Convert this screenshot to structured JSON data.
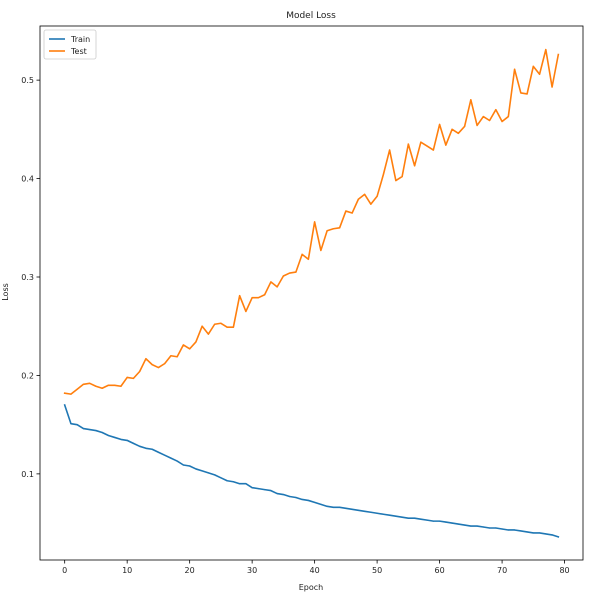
{
  "chart_data": {
    "type": "line",
    "title": "Model Loss",
    "xlabel": "Epoch",
    "ylabel": "Loss",
    "xlim": [
      -3.95,
      82.95
    ],
    "ylim": [
      0.0125,
      0.555
    ],
    "xticks": [
      0,
      10,
      20,
      30,
      40,
      50,
      60,
      70,
      80
    ],
    "yticks": [
      0.1,
      0.2,
      0.3,
      0.4,
      0.5
    ],
    "grid": false,
    "legend_position": "upper left",
    "series": [
      {
        "name": "Train",
        "color": "#1f77b4",
        "x": [
          0,
          1,
          2,
          3,
          4,
          5,
          6,
          7,
          8,
          9,
          10,
          11,
          12,
          13,
          14,
          15,
          16,
          17,
          18,
          19,
          20,
          21,
          22,
          23,
          24,
          25,
          26,
          27,
          28,
          29,
          30,
          31,
          32,
          33,
          34,
          35,
          36,
          37,
          38,
          39,
          40,
          41,
          42,
          43,
          44,
          45,
          46,
          47,
          48,
          49,
          50,
          51,
          52,
          53,
          54,
          55,
          56,
          57,
          58,
          59,
          60,
          61,
          62,
          63,
          64,
          65,
          66,
          67,
          68,
          69,
          70,
          71,
          72,
          73,
          74,
          75,
          76,
          77,
          78,
          79
        ],
        "values": [
          0.17,
          0.151,
          0.15,
          0.146,
          0.145,
          0.144,
          0.142,
          0.139,
          0.137,
          0.135,
          0.134,
          0.131,
          0.128,
          0.126,
          0.125,
          0.122,
          0.119,
          0.116,
          0.113,
          0.109,
          0.108,
          0.105,
          0.103,
          0.101,
          0.099,
          0.096,
          0.093,
          0.092,
          0.09,
          0.09,
          0.086,
          0.085,
          0.084,
          0.083,
          0.08,
          0.079,
          0.077,
          0.076,
          0.074,
          0.073,
          0.071,
          0.069,
          0.067,
          0.066,
          0.066,
          0.065,
          0.064,
          0.063,
          0.062,
          0.061,
          0.06,
          0.059,
          0.058,
          0.057,
          0.056,
          0.055,
          0.055,
          0.054,
          0.053,
          0.052,
          0.052,
          0.051,
          0.05,
          0.049,
          0.048,
          0.047,
          0.047,
          0.046,
          0.045,
          0.045,
          0.044,
          0.043,
          0.043,
          0.042,
          0.041,
          0.04,
          0.04,
          0.039,
          0.038,
          0.036
        ]
      },
      {
        "name": "Test",
        "color": "#ff7f0e",
        "x": [
          0,
          1,
          2,
          3,
          4,
          5,
          6,
          7,
          8,
          9,
          10,
          11,
          12,
          13,
          14,
          15,
          16,
          17,
          18,
          19,
          20,
          21,
          22,
          23,
          24,
          25,
          26,
          27,
          28,
          29,
          30,
          31,
          32,
          33,
          34,
          35,
          36,
          37,
          38,
          39,
          40,
          41,
          42,
          43,
          44,
          45,
          46,
          47,
          48,
          49,
          50,
          51,
          52,
          53,
          54,
          55,
          56,
          57,
          58,
          59,
          60,
          61,
          62,
          63,
          64,
          65,
          66,
          67,
          68,
          69,
          70,
          71,
          72,
          73,
          74,
          75,
          76,
          77,
          78,
          79
        ],
        "values": [
          0.182,
          0.181,
          0.186,
          0.191,
          0.192,
          0.189,
          0.187,
          0.19,
          0.19,
          0.189,
          0.198,
          0.197,
          0.204,
          0.217,
          0.211,
          0.208,
          0.212,
          0.22,
          0.219,
          0.231,
          0.227,
          0.234,
          0.25,
          0.242,
          0.252,
          0.253,
          0.249,
          0.249,
          0.281,
          0.265,
          0.279,
          0.279,
          0.282,
          0.295,
          0.29,
          0.301,
          0.304,
          0.305,
          0.323,
          0.318,
          0.356,
          0.327,
          0.347,
          0.349,
          0.35,
          0.367,
          0.365,
          0.379,
          0.384,
          0.374,
          0.382,
          0.404,
          0.429,
          0.398,
          0.402,
          0.435,
          0.413,
          0.437,
          0.433,
          0.429,
          0.455,
          0.434,
          0.45,
          0.446,
          0.453,
          0.48,
          0.454,
          0.463,
          0.459,
          0.47,
          0.458,
          0.463,
          0.511,
          0.487,
          0.486,
          0.514,
          0.506,
          0.531,
          0.493,
          0.526
        ]
      }
    ]
  }
}
